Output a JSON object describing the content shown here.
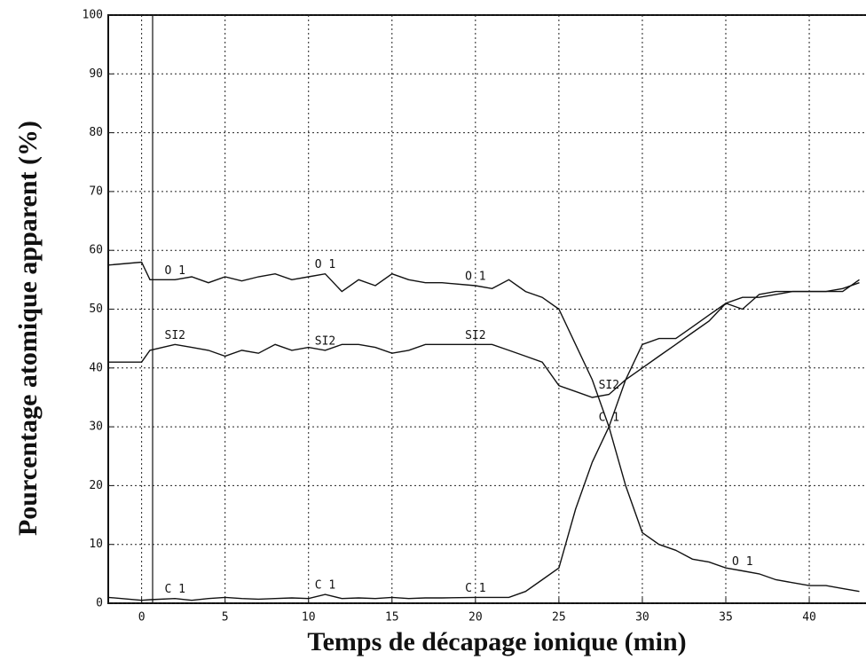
{
  "chart_data": {
    "type": "line",
    "x_label": "Temps de décapage ionique (min)",
    "y_label": "Pourcentage atomique apparent (%)",
    "xlim": [
      -2,
      43.4
    ],
    "xticks": [
      0,
      5,
      10,
      15,
      20,
      25,
      30,
      35,
      40
    ],
    "ylim": [
      0,
      100
    ],
    "yticks": [
      0,
      10,
      20,
      30,
      40,
      50,
      60,
      70,
      80,
      90,
      100
    ],
    "grid": true,
    "x": [
      -2,
      0,
      0.5,
      2,
      3,
      4,
      5,
      6,
      7,
      8,
      9,
      10,
      11,
      12,
      13,
      14,
      15,
      16,
      17,
      18,
      20,
      21,
      22,
      23,
      24,
      25,
      26,
      27,
      28,
      29,
      30,
      31,
      32,
      33,
      34,
      35,
      36,
      37,
      38,
      39,
      40,
      41,
      42,
      43
    ],
    "series": [
      {
        "name": "O 1",
        "color": "#111111",
        "values": [
          57.5,
          58,
          55,
          55,
          55.5,
          54.5,
          55.5,
          54.8,
          55.5,
          56,
          55,
          55.5,
          56,
          53,
          55,
          54,
          56,
          55,
          54.5,
          54.5,
          54,
          53.5,
          55,
          53,
          52,
          50,
          44,
          38,
          30,
          20,
          12,
          10,
          9,
          7.5,
          7,
          6,
          5.5,
          5,
          4,
          3.5,
          3,
          3,
          2.5,
          2
        ]
      },
      {
        "name": "SI2",
        "color": "#111111",
        "values": [
          41,
          41,
          43,
          44,
          43.5,
          43,
          42,
          43,
          42.5,
          44,
          43,
          43.5,
          43,
          44,
          44,
          43.5,
          42.5,
          43,
          44,
          44,
          44,
          44,
          43,
          42,
          41,
          37,
          36,
          35,
          35.5,
          38,
          40,
          42,
          44,
          46,
          48,
          51,
          52,
          52,
          52.5,
          53,
          53,
          53,
          53.5,
          54.5
        ]
      },
      {
        "name": "C 1",
        "color": "#111111",
        "values": [
          1,
          0.5,
          0.6,
          0.8,
          0.5,
          0.8,
          1,
          0.8,
          0.7,
          0.8,
          0.9,
          0.8,
          1.5,
          0.8,
          0.9,
          0.8,
          1,
          0.8,
          0.9,
          0.9,
          1,
          1,
          1,
          2,
          4,
          6,
          16,
          24,
          30,
          38,
          44,
          45,
          45,
          47,
          49,
          51,
          50,
          52.5,
          53,
          53,
          53,
          53,
          53,
          55
        ]
      }
    ]
  }
}
